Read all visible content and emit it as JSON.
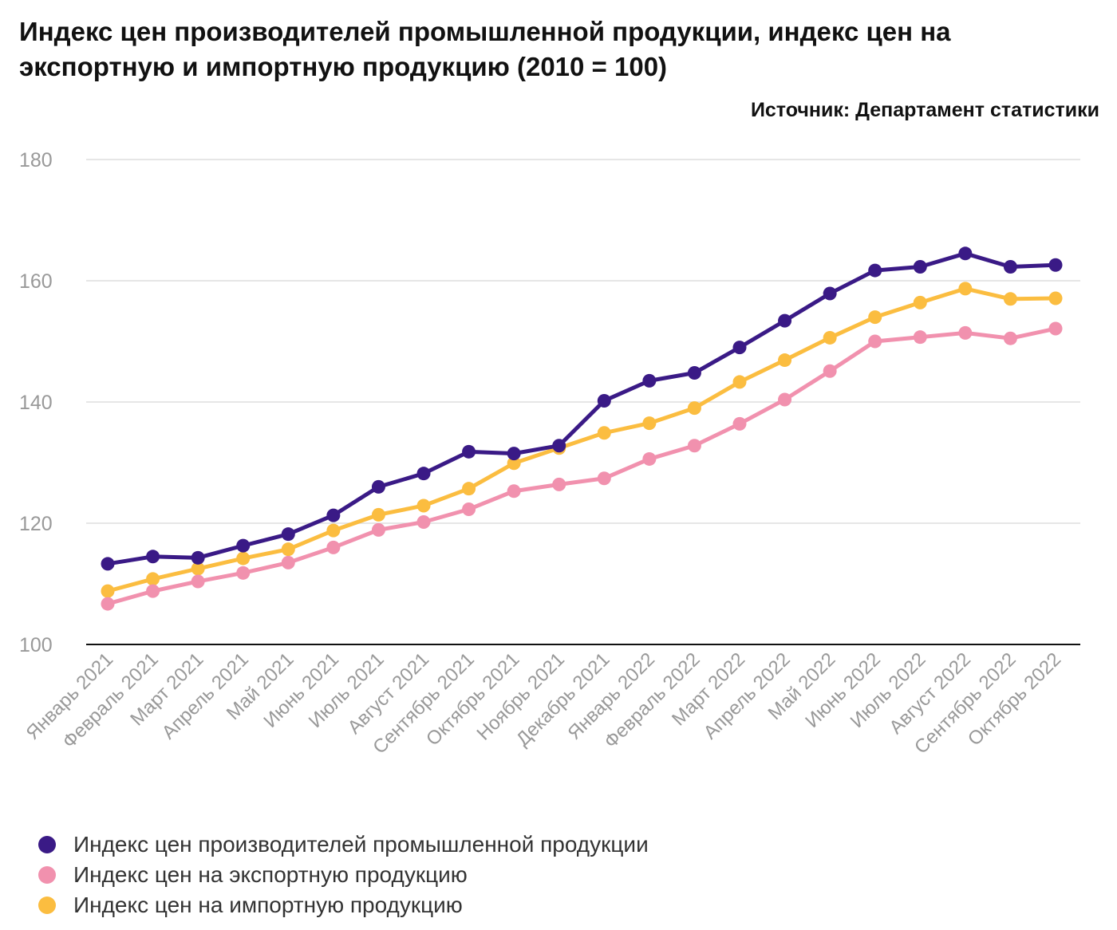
{
  "header": {
    "title": "Индекс цен производителей промышленной продукции, индекс цен на экспортную и импортную продукцию (2010 = 100)",
    "source": "Источник: Департамент статистики"
  },
  "chart_data": {
    "type": "line",
    "title": "Индекс цен производителей промышленной продукции, индекс цен на экспортную и импортную продукцию (2010 = 100)",
    "xlabel": "",
    "ylabel": "",
    "ylim": [
      100,
      180
    ],
    "yticks": [
      100,
      120,
      140,
      160,
      180
    ],
    "grid": true,
    "legend_position": "bottom-left",
    "categories": [
      "Январь 2021",
      "Февраль 2021",
      "Март 2021",
      "Апрель 2021",
      "Май 2021",
      "Июнь 2021",
      "Июль 2021",
      "Август 2021",
      "Сентябрь 2021",
      "Октябрь 2021",
      "Ноябрь 2021",
      "Декабрь 2021",
      "Январь 2022",
      "Февраль 2022",
      "Март 2022",
      "Апрель 2022",
      "Май 2022",
      "Июнь 2022",
      "Июль 2022",
      "Август 2022",
      "Сентябрь 2022",
      "Октябрь 2022"
    ],
    "series": [
      {
        "name": "Индекс цен производителей промышленной продукции",
        "color": "#3a1a86",
        "values": [
          113.3,
          114.5,
          114.3,
          116.3,
          118.2,
          121.3,
          126.0,
          128.2,
          131.8,
          131.5,
          132.8,
          140.2,
          143.5,
          144.8,
          149.0,
          153.4,
          157.9,
          161.7,
          162.3,
          164.5,
          162.3,
          162.6
        ]
      },
      {
        "name": "Индекс цен на экспортную продукцию",
        "color": "#f191ae",
        "values": [
          106.7,
          108.8,
          110.4,
          111.8,
          113.5,
          116.0,
          118.9,
          120.2,
          122.3,
          125.3,
          126.4,
          127.4,
          130.6,
          132.8,
          136.4,
          140.4,
          145.1,
          150.0,
          150.7,
          151.4,
          150.5,
          152.1
        ]
      },
      {
        "name": "Индекс цен на импортную продукцию",
        "color": "#fbbd40",
        "values": [
          108.8,
          110.8,
          112.5,
          114.2,
          115.7,
          118.8,
          121.4,
          122.9,
          125.7,
          129.9,
          132.4,
          134.9,
          136.5,
          139.0,
          143.3,
          146.9,
          150.6,
          154.0,
          156.4,
          158.7,
          157.0,
          157.1
        ]
      }
    ]
  }
}
